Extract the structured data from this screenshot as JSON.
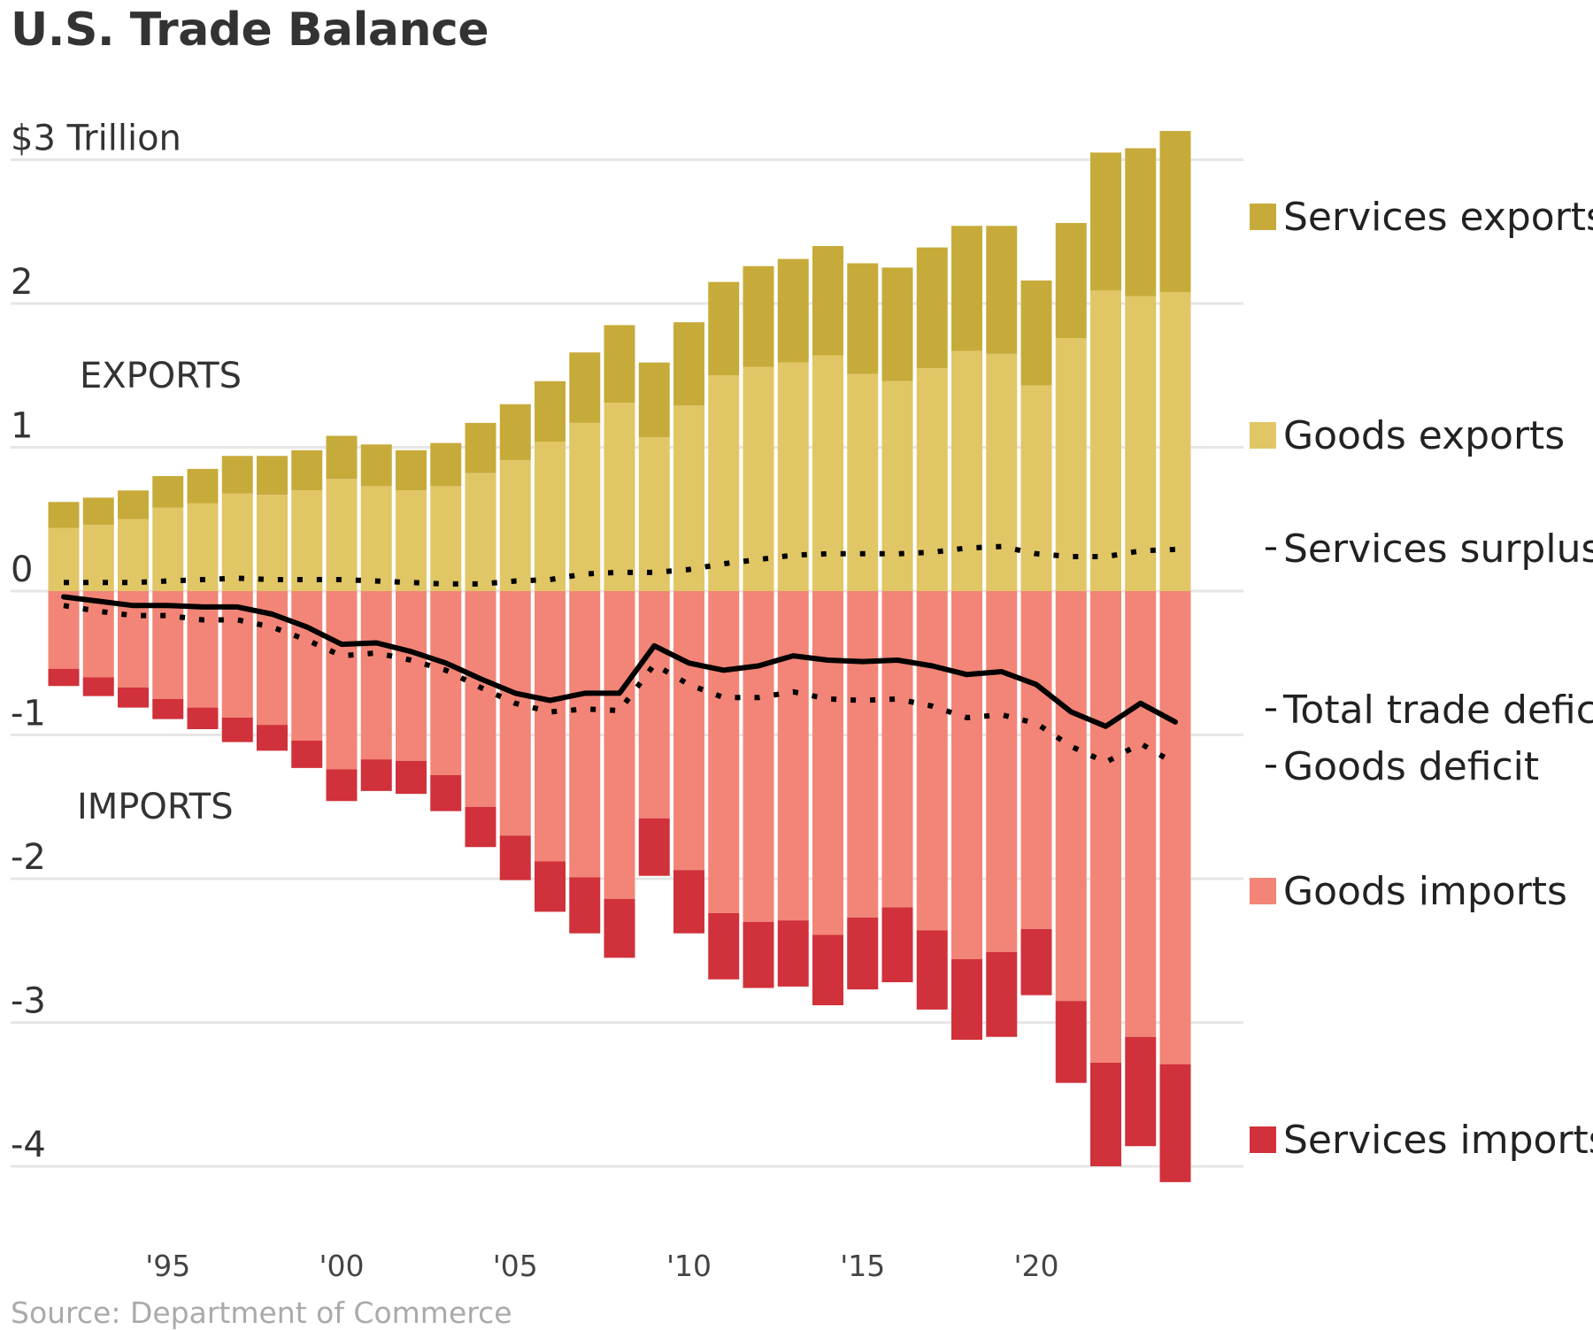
{
  "title": "U.S. Trade Balance",
  "source": "Source: Department of Commerce",
  "colors": {
    "services_exports": "#c7ab3a",
    "goods_exports": "#e1c666",
    "goods_imports": "#f28577",
    "services_imports": "#d0313a",
    "gridline": "#e6e6e6",
    "lines": "#000000"
  },
  "annotations": {
    "exports": "EXPORTS",
    "imports": "IMPORTS"
  },
  "chart_data": {
    "type": "bar",
    "stacked": true,
    "units": "$ Trillion",
    "x": [
      1992,
      1993,
      1994,
      1995,
      1996,
      1997,
      1998,
      1999,
      2000,
      2001,
      2002,
      2003,
      2004,
      2005,
      2006,
      2007,
      2008,
      2009,
      2010,
      2011,
      2012,
      2013,
      2014,
      2015,
      2016,
      2017,
      2018,
      2019,
      2020,
      2021,
      2022,
      2023,
      2024
    ],
    "x_ticks": [
      1995,
      2000,
      2005,
      2010,
      2015,
      2020
    ],
    "x_tick_labels": [
      "'95",
      "'00",
      "'05",
      "'10",
      "'15",
      "'20"
    ],
    "y_ticks": [
      3,
      2,
      1,
      0,
      -1,
      -2,
      -3,
      -4
    ],
    "y_tick_labels": [
      "$3 Trillion",
      "2",
      "1",
      "0",
      "-1",
      "-2",
      "-3",
      "-4"
    ],
    "ylim": [
      -4.2,
      3.2
    ],
    "grid": true,
    "legend_position": "right",
    "series": [
      {
        "name": "Goods exports",
        "kind": "bar",
        "values": [
          0.44,
          0.46,
          0.5,
          0.58,
          0.61,
          0.68,
          0.67,
          0.7,
          0.78,
          0.73,
          0.7,
          0.73,
          0.82,
          0.91,
          1.04,
          1.17,
          1.31,
          1.07,
          1.29,
          1.5,
          1.56,
          1.59,
          1.64,
          1.51,
          1.46,
          1.55,
          1.67,
          1.65,
          1.43,
          1.76,
          2.09,
          2.05,
          2.08
        ]
      },
      {
        "name": "Services exports",
        "kind": "bar",
        "values": [
          0.18,
          0.19,
          0.2,
          0.22,
          0.24,
          0.26,
          0.27,
          0.28,
          0.3,
          0.29,
          0.28,
          0.3,
          0.35,
          0.39,
          0.42,
          0.49,
          0.54,
          0.52,
          0.58,
          0.65,
          0.7,
          0.72,
          0.76,
          0.77,
          0.79,
          0.84,
          0.87,
          0.89,
          0.73,
          0.8,
          0.96,
          1.03,
          1.12
        ]
      },
      {
        "name": "Goods imports",
        "kind": "bar",
        "values": [
          -0.54,
          -0.6,
          -0.67,
          -0.75,
          -0.81,
          -0.88,
          -0.93,
          -1.04,
          -1.24,
          -1.17,
          -1.18,
          -1.28,
          -1.5,
          -1.7,
          -1.88,
          -1.99,
          -2.14,
          -1.58,
          -1.94,
          -2.24,
          -2.3,
          -2.29,
          -2.39,
          -2.27,
          -2.2,
          -2.36,
          -2.56,
          -2.51,
          -2.35,
          -2.85,
          -3.28,
          -3.1,
          -3.29
        ]
      },
      {
        "name": "Services imports",
        "kind": "bar",
        "values": [
          -0.12,
          -0.13,
          -0.14,
          -0.14,
          -0.15,
          -0.17,
          -0.18,
          -0.19,
          -0.22,
          -0.22,
          -0.23,
          -0.25,
          -0.28,
          -0.31,
          -0.35,
          -0.39,
          -0.41,
          -0.4,
          -0.44,
          -0.46,
          -0.46,
          -0.46,
          -0.49,
          -0.5,
          -0.52,
          -0.55,
          -0.56,
          -0.59,
          -0.46,
          -0.57,
          -0.72,
          -0.76,
          -0.82
        ]
      },
      {
        "name": "Services surplus",
        "kind": "line",
        "style": "dotted",
        "values": [
          0.06,
          0.06,
          0.06,
          0.07,
          0.08,
          0.09,
          0.08,
          0.08,
          0.08,
          0.07,
          0.06,
          0.05,
          0.05,
          0.07,
          0.08,
          0.12,
          0.13,
          0.13,
          0.15,
          0.19,
          0.22,
          0.25,
          0.26,
          0.26,
          0.26,
          0.27,
          0.3,
          0.31,
          0.26,
          0.24,
          0.24,
          0.28,
          0.29
        ]
      },
      {
        "name": "Total trade deficit",
        "kind": "line",
        "style": "solid",
        "values": [
          -0.04,
          -0.07,
          -0.1,
          -0.1,
          -0.11,
          -0.11,
          -0.16,
          -0.25,
          -0.37,
          -0.36,
          -0.42,
          -0.5,
          -0.61,
          -0.71,
          -0.76,
          -0.71,
          -0.71,
          -0.38,
          -0.5,
          -0.55,
          -0.52,
          -0.45,
          -0.48,
          -0.49,
          -0.48,
          -0.52,
          -0.58,
          -0.56,
          -0.65,
          -0.84,
          -0.94,
          -0.78,
          -0.91
        ]
      },
      {
        "name": "Goods deficit",
        "kind": "line",
        "style": "dotted",
        "values": [
          -0.1,
          -0.14,
          -0.17,
          -0.17,
          -0.2,
          -0.2,
          -0.25,
          -0.34,
          -0.45,
          -0.43,
          -0.48,
          -0.55,
          -0.67,
          -0.78,
          -0.84,
          -0.82,
          -0.83,
          -0.51,
          -0.65,
          -0.74,
          -0.74,
          -0.7,
          -0.75,
          -0.76,
          -0.75,
          -0.8,
          -0.88,
          -0.86,
          -0.92,
          -1.08,
          -1.19,
          -1.06,
          -1.2
        ]
      }
    ]
  }
}
